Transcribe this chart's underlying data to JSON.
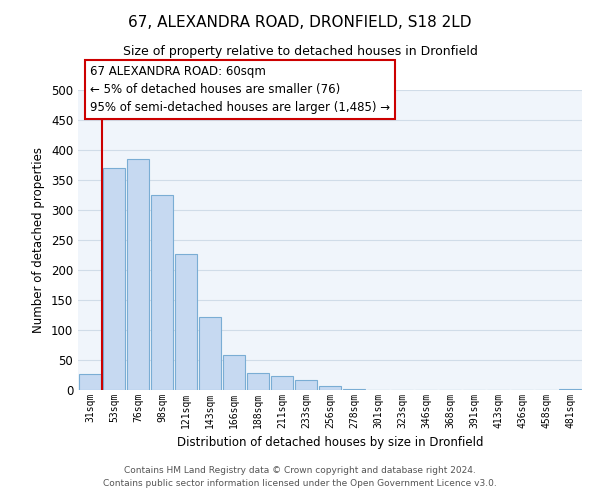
{
  "title": "67, ALEXANDRA ROAD, DRONFIELD, S18 2LD",
  "subtitle": "Size of property relative to detached houses in Dronfield",
  "xlabel": "Distribution of detached houses by size in Dronfield",
  "ylabel": "Number of detached properties",
  "bar_labels": [
    "31sqm",
    "53sqm",
    "76sqm",
    "98sqm",
    "121sqm",
    "143sqm",
    "166sqm",
    "188sqm",
    "211sqm",
    "233sqm",
    "256sqm",
    "278sqm",
    "301sqm",
    "323sqm",
    "346sqm",
    "368sqm",
    "391sqm",
    "413sqm",
    "436sqm",
    "458sqm",
    "481sqm"
  ],
  "bar_heights": [
    27,
    370,
    385,
    325,
    227,
    121,
    58,
    28,
    23,
    17,
    6,
    1,
    0,
    0,
    0,
    0,
    0,
    0,
    0,
    0,
    2
  ],
  "bar_color": "#c6d9f1",
  "bar_edge_color": "#7aadd4",
  "vline_color": "#cc0000",
  "ylim": [
    0,
    500
  ],
  "yticks": [
    0,
    50,
    100,
    150,
    200,
    250,
    300,
    350,
    400,
    450,
    500
  ],
  "annotation_line1": "67 ALEXANDRA ROAD: 60sqm",
  "annotation_line2": "← 5% of detached houses are smaller (76)",
  "annotation_line3": "95% of semi-detached houses are larger (1,485) →",
  "footer_line1": "Contains HM Land Registry data © Crown copyright and database right 2024.",
  "footer_line2": "Contains public sector information licensed under the Open Government Licence v3.0.",
  "grid_color": "#d0dce8",
  "background_color": "#f0f5fb"
}
